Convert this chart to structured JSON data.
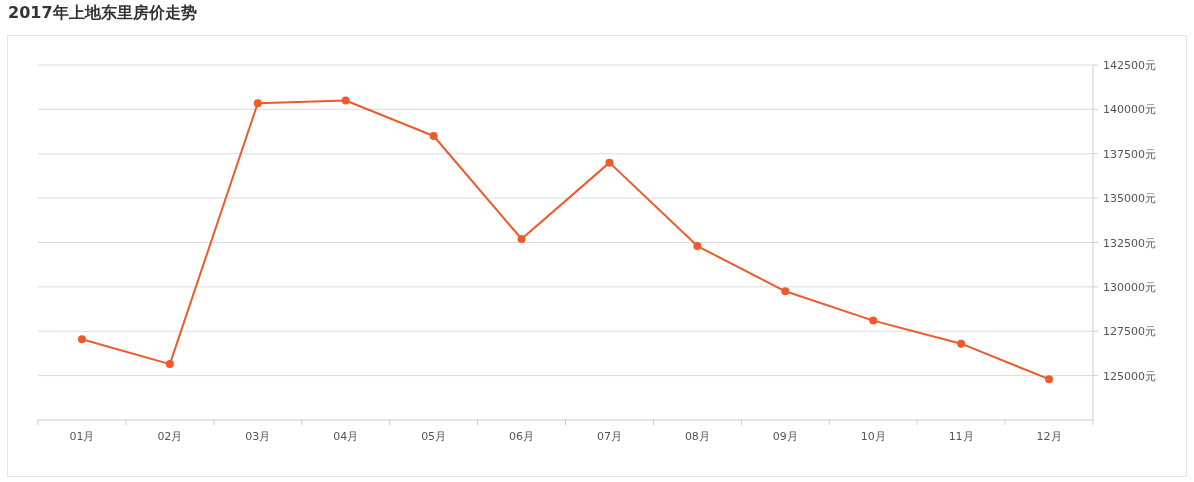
{
  "chart_data": {
    "type": "line",
    "title": "2017年上地东里房价走势",
    "categories": [
      "01月",
      "02月",
      "03月",
      "04月",
      "05月",
      "06月",
      "07月",
      "08月",
      "09月",
      "10月",
      "11月",
      "12月"
    ],
    "series": [
      {
        "color": "#ee5a2b",
        "values": [
          127050,
          125650,
          140350,
          140500,
          138500,
          132700,
          137000,
          132300,
          129750,
          128100,
          126800,
          124800
        ]
      }
    ],
    "ylim": [
      122500,
      142500
    ],
    "yticks": [
      {
        "value": 125000,
        "label": "125000元"
      },
      {
        "value": 127500,
        "label": "127500元"
      },
      {
        "value": 130000,
        "label": "130000元"
      },
      {
        "value": 132500,
        "label": "132500元"
      },
      {
        "value": 135000,
        "label": "135000元"
      },
      {
        "value": 137500,
        "label": "137500元"
      },
      {
        "value": 140000,
        "label": "140000元"
      },
      {
        "value": 142500,
        "label": "142500元"
      }
    ],
    "grid": "y",
    "marker": "circle",
    "line_style": "solid"
  }
}
